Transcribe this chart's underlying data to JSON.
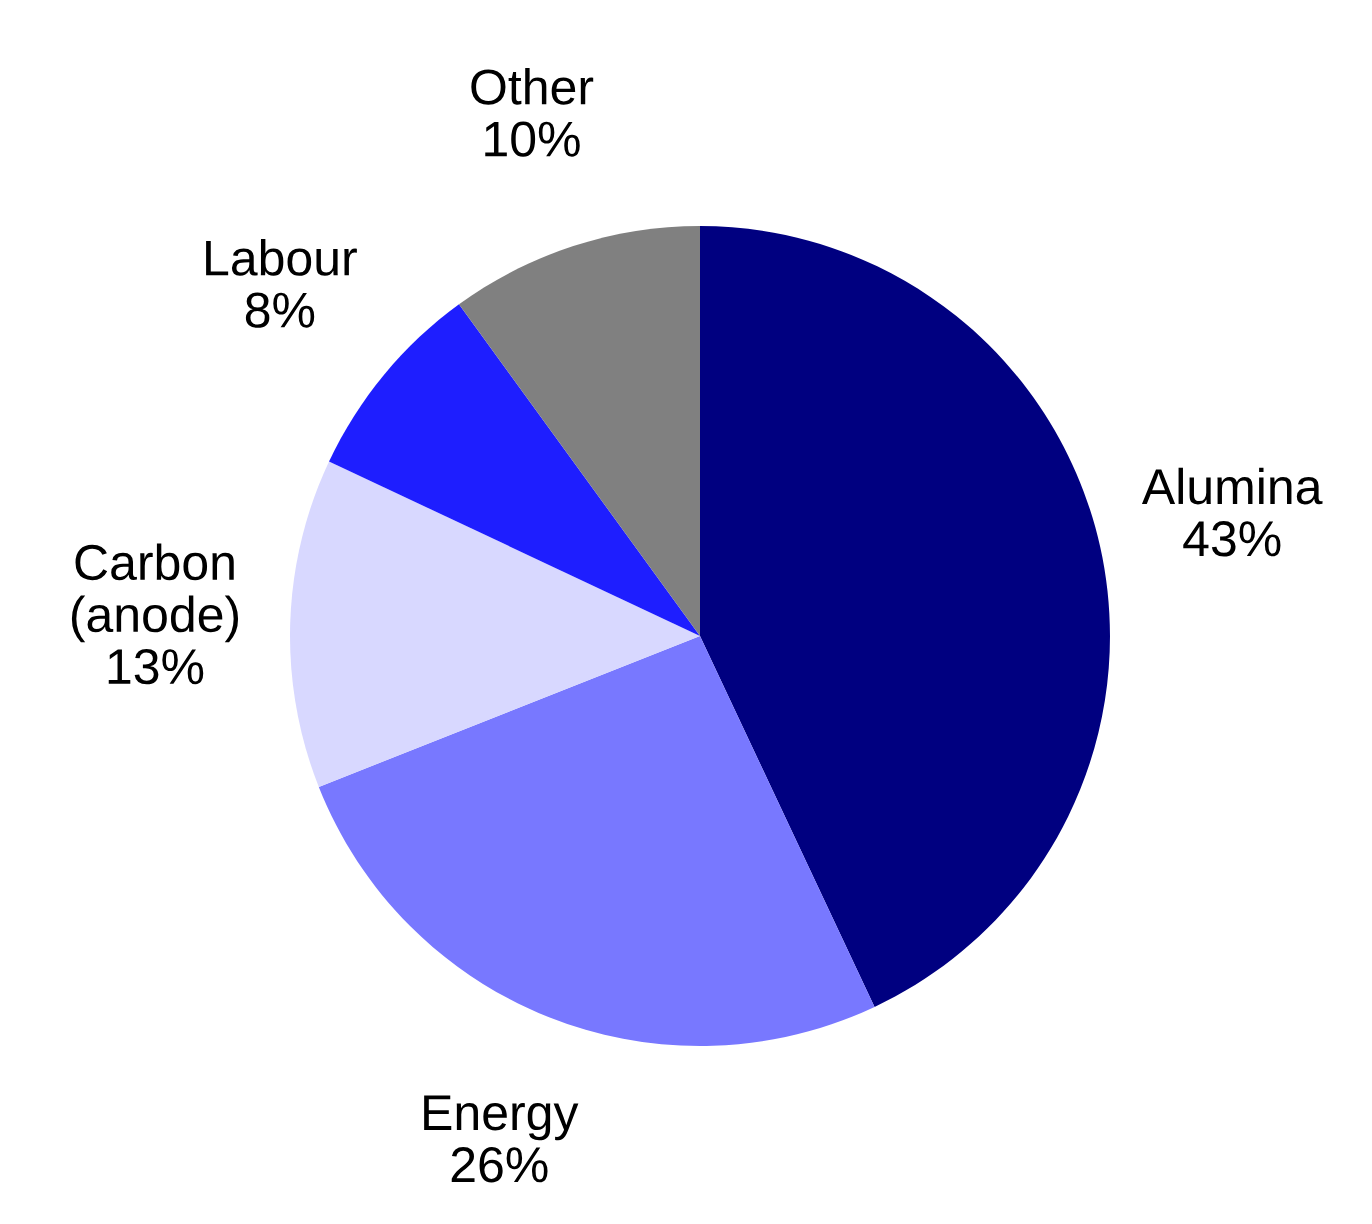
{
  "chart_data": {
    "type": "pie",
    "categories": [
      "Alumina",
      "Energy",
      "Carbon (anode)",
      "Labour",
      "Other"
    ],
    "values": [
      43,
      26,
      13,
      8,
      10
    ],
    "colors": [
      "#000080",
      "#7878ff",
      "#d8d8ff",
      "#1e1eff",
      "#808080"
    ],
    "value_labels": [
      "43%",
      "26%",
      "13%",
      "8%",
      "10%"
    ]
  }
}
